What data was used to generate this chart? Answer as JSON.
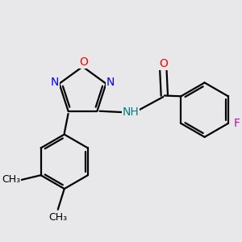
{
  "bg_color": "#e8e8eb",
  "bond_color": "#000000",
  "bond_width": 1.6,
  "atom_colors": {
    "O": "#ff0000",
    "N": "#0000ff",
    "F": "#cc00cc",
    "NH": "#008080",
    "C": "#000000"
  },
  "font_size": 10,
  "font_size_small": 9
}
